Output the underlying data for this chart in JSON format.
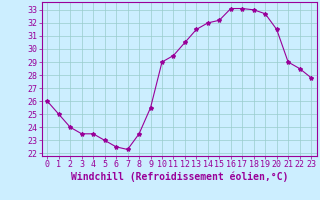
{
  "x": [
    0,
    1,
    2,
    3,
    4,
    5,
    6,
    7,
    8,
    9,
    10,
    11,
    12,
    13,
    14,
    15,
    16,
    17,
    18,
    19,
    20,
    21,
    22,
    23
  ],
  "y": [
    26.0,
    25.0,
    24.0,
    23.5,
    23.5,
    23.0,
    22.5,
    22.3,
    23.5,
    25.5,
    29.0,
    29.5,
    30.5,
    31.5,
    32.0,
    32.2,
    33.1,
    33.1,
    33.0,
    32.7,
    31.5,
    29.0,
    28.5,
    27.8
  ],
  "line_color": "#990099",
  "marker": "*",
  "marker_size": 3,
  "bg_color": "#cceeff",
  "grid_color": "#99cccc",
  "xlabel": "Windchill (Refroidissement éolien,°C)",
  "xlabel_fontsize": 7,
  "tick_fontsize": 6,
  "ylim": [
    21.8,
    33.6
  ],
  "xlim": [
    -0.5,
    23.5
  ],
  "yticks": [
    22,
    23,
    24,
    25,
    26,
    27,
    28,
    29,
    30,
    31,
    32,
    33
  ],
  "xticks": [
    0,
    1,
    2,
    3,
    4,
    5,
    6,
    7,
    8,
    9,
    10,
    11,
    12,
    13,
    14,
    15,
    16,
    17,
    18,
    19,
    20,
    21,
    22,
    23
  ]
}
